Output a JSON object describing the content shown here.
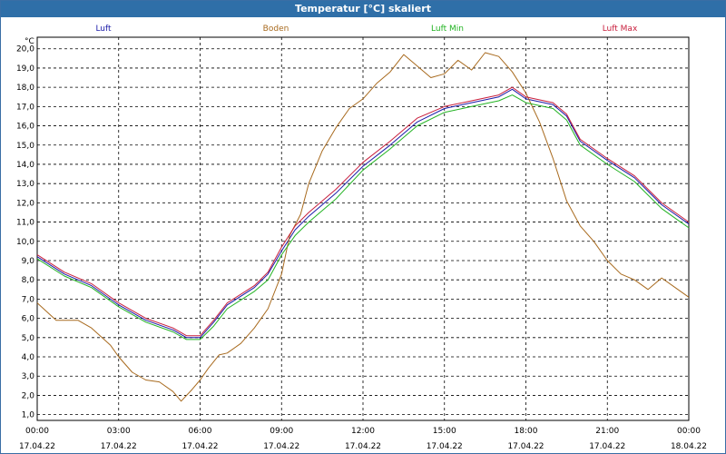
{
  "window": {
    "title": "Temperatur [°C] skaliert"
  },
  "chart_data": {
    "type": "line",
    "title": "Temperatur [°C] skaliert",
    "ylabel": "°C",
    "xlabel": "",
    "ylim": [
      0.7,
      20.6
    ],
    "xlim": [
      0,
      24
    ],
    "grid": true,
    "legend_position": "top",
    "y_ticks": [
      "1,0",
      "2,0",
      "3,0",
      "4,0",
      "5,0",
      "6,0",
      "7,0",
      "8,0",
      "9,0",
      "10,0",
      "11,0",
      "12,0",
      "13,0",
      "14,0",
      "15,0",
      "16,0",
      "17,0",
      "18,0",
      "19,0",
      "20,0"
    ],
    "x_ticks": [
      {
        "time": "00:00",
        "date": "17.04.22"
      },
      {
        "time": "03:00",
        "date": "17.04.22"
      },
      {
        "time": "06:00",
        "date": "17.04.22"
      },
      {
        "time": "09:00",
        "date": "17.04.22"
      },
      {
        "time": "12:00",
        "date": "17.04.22"
      },
      {
        "time": "15:00",
        "date": "17.04.22"
      },
      {
        "time": "18:00",
        "date": "17.04.22"
      },
      {
        "time": "21:00",
        "date": "17.04.22"
      },
      {
        "time": "00:00",
        "date": "18.04.22"
      }
    ],
    "series": [
      {
        "name": "Luft",
        "color": "#1a1aa8",
        "points": [
          [
            0,
            9.2
          ],
          [
            1,
            8.3
          ],
          [
            2,
            7.7
          ],
          [
            3,
            6.7
          ],
          [
            4,
            5.9
          ],
          [
            5,
            5.4
          ],
          [
            5.5,
            5.0
          ],
          [
            6,
            5.0
          ],
          [
            6.5,
            5.8
          ],
          [
            7,
            6.7
          ],
          [
            8,
            7.6
          ],
          [
            8.5,
            8.3
          ],
          [
            9,
            9.5
          ],
          [
            9.5,
            10.6
          ],
          [
            10,
            11.3
          ],
          [
            11,
            12.5
          ],
          [
            12,
            13.9
          ],
          [
            13,
            15.0
          ],
          [
            14,
            16.2
          ],
          [
            15,
            16.9
          ],
          [
            16,
            17.2
          ],
          [
            17,
            17.5
          ],
          [
            17.5,
            17.9
          ],
          [
            18,
            17.4
          ],
          [
            19,
            17.1
          ],
          [
            19.5,
            16.5
          ],
          [
            20,
            15.2
          ],
          [
            21,
            14.2
          ],
          [
            22,
            13.3
          ],
          [
            22.5,
            12.6
          ],
          [
            23,
            11.9
          ],
          [
            23.5,
            11.4
          ],
          [
            24,
            10.9
          ]
        ]
      },
      {
        "name": "Boden",
        "color": "#a86a1e",
        "points": [
          [
            0,
            6.8
          ],
          [
            0.7,
            5.9
          ],
          [
            1.5,
            5.9
          ],
          [
            2,
            5.5
          ],
          [
            2.7,
            4.6
          ],
          [
            3,
            4.0
          ],
          [
            3.5,
            3.2
          ],
          [
            4,
            2.8
          ],
          [
            4.5,
            2.7
          ],
          [
            5,
            2.2
          ],
          [
            5.3,
            1.7
          ],
          [
            5.7,
            2.3
          ],
          [
            6,
            2.8
          ],
          [
            6.3,
            3.4
          ],
          [
            6.7,
            4.1
          ],
          [
            7,
            4.2
          ],
          [
            7.5,
            4.7
          ],
          [
            8,
            5.5
          ],
          [
            8.5,
            6.5
          ],
          [
            9,
            8.3
          ],
          [
            9.3,
            10.3
          ],
          [
            9.7,
            11.4
          ],
          [
            10,
            13.0
          ],
          [
            10.5,
            14.7
          ],
          [
            11,
            15.9
          ],
          [
            11.5,
            16.9
          ],
          [
            12,
            17.4
          ],
          [
            12.5,
            18.2
          ],
          [
            13,
            18.8
          ],
          [
            13.5,
            19.7
          ],
          [
            14,
            19.1
          ],
          [
            14.5,
            18.5
          ],
          [
            15,
            18.7
          ],
          [
            15.5,
            19.4
          ],
          [
            16,
            18.9
          ],
          [
            16.5,
            19.8
          ],
          [
            17,
            19.6
          ],
          [
            17.5,
            18.8
          ],
          [
            18,
            17.7
          ],
          [
            18.5,
            16.2
          ],
          [
            19,
            14.3
          ],
          [
            19.5,
            12.1
          ],
          [
            20,
            10.8
          ],
          [
            20.5,
            10.0
          ],
          [
            21,
            9.0
          ],
          [
            21.5,
            8.3
          ],
          [
            22,
            8.0
          ],
          [
            22.5,
            7.5
          ],
          [
            23,
            8.1
          ],
          [
            23.5,
            7.6
          ],
          [
            24,
            7.1
          ]
        ]
      },
      {
        "name": "Luft Min",
        "color": "#22b322",
        "points": [
          [
            0,
            9.1
          ],
          [
            1,
            8.2
          ],
          [
            2,
            7.6
          ],
          [
            3,
            6.6
          ],
          [
            4,
            5.8
          ],
          [
            5,
            5.3
          ],
          [
            5.5,
            4.9
          ],
          [
            6,
            4.9
          ],
          [
            6.5,
            5.6
          ],
          [
            7,
            6.5
          ],
          [
            8,
            7.4
          ],
          [
            8.5,
            8.0
          ],
          [
            9,
            9.3
          ],
          [
            9.5,
            10.3
          ],
          [
            10,
            11.0
          ],
          [
            11,
            12.2
          ],
          [
            12,
            13.7
          ],
          [
            13,
            14.8
          ],
          [
            14,
            16.0
          ],
          [
            15,
            16.7
          ],
          [
            16,
            17.0
          ],
          [
            17,
            17.3
          ],
          [
            17.5,
            17.6
          ],
          [
            18,
            17.2
          ],
          [
            19,
            16.9
          ],
          [
            19.5,
            16.3
          ],
          [
            20,
            15.0
          ],
          [
            21,
            14.0
          ],
          [
            22,
            13.1
          ],
          [
            22.5,
            12.4
          ],
          [
            23,
            11.7
          ],
          [
            23.5,
            11.2
          ],
          [
            24,
            10.7
          ]
        ]
      },
      {
        "name": "Luft Max",
        "color": "#c81e3c",
        "points": [
          [
            0,
            9.3
          ],
          [
            1,
            8.4
          ],
          [
            2,
            7.8
          ],
          [
            3,
            6.8
          ],
          [
            4,
            6.0
          ],
          [
            5,
            5.5
          ],
          [
            5.5,
            5.1
          ],
          [
            6,
            5.1
          ],
          [
            6.5,
            5.9
          ],
          [
            7,
            6.8
          ],
          [
            8,
            7.7
          ],
          [
            8.5,
            8.4
          ],
          [
            9,
            9.7
          ],
          [
            9.5,
            10.8
          ],
          [
            10,
            11.5
          ],
          [
            11,
            12.7
          ],
          [
            12,
            14.1
          ],
          [
            13,
            15.2
          ],
          [
            14,
            16.4
          ],
          [
            15,
            17.0
          ],
          [
            16,
            17.3
          ],
          [
            17,
            17.6
          ],
          [
            17.5,
            18.0
          ],
          [
            18,
            17.5
          ],
          [
            19,
            17.2
          ],
          [
            19.5,
            16.6
          ],
          [
            20,
            15.3
          ],
          [
            21,
            14.3
          ],
          [
            22,
            13.4
          ],
          [
            22.5,
            12.7
          ],
          [
            23,
            12.0
          ],
          [
            23.5,
            11.5
          ],
          [
            24,
            11.0
          ]
        ]
      }
    ]
  }
}
